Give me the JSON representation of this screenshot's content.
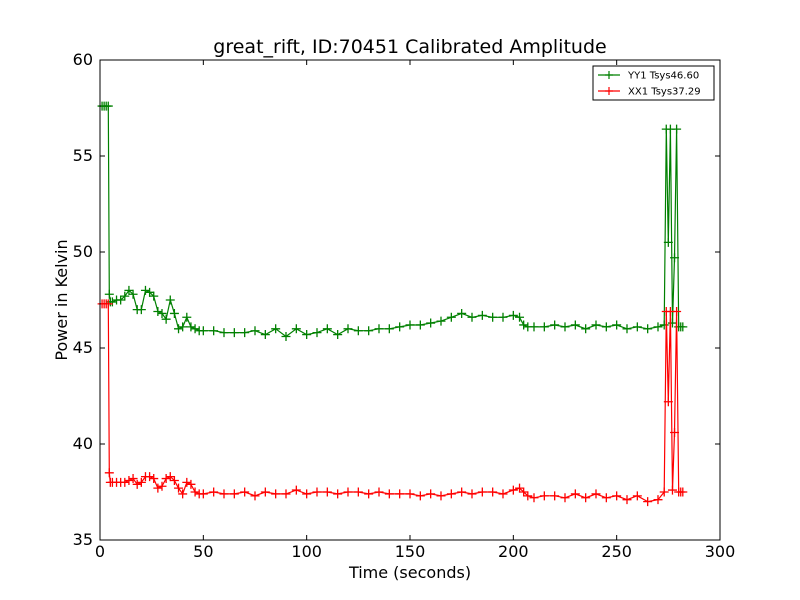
{
  "chart_data": {
    "type": "line",
    "title": "great_rift, ID:70451 Calibrated Amplitude",
    "xlabel": "Time (seconds)",
    "ylabel": "Power in Kelvin",
    "xlim": [
      0,
      300
    ],
    "ylim": [
      35,
      60
    ],
    "xticks": [
      "0",
      "50",
      "100",
      "150",
      "200",
      "250",
      "300"
    ],
    "yticks": [
      "35",
      "40",
      "45",
      "50",
      "55",
      "60"
    ],
    "grid": false,
    "legend_position": "top-right",
    "marker": "+",
    "series": [
      {
        "name": "YY1 Tsys46.60",
        "color": "#008000",
        "x": [
          1,
          2,
          3,
          4,
          4.5,
          5,
          6,
          8,
          10,
          12,
          14,
          16,
          18,
          20,
          22,
          24,
          26,
          28,
          30,
          32,
          34,
          36,
          38,
          40,
          42,
          44,
          46,
          48,
          50,
          55,
          60,
          65,
          70,
          75,
          80,
          85,
          90,
          95,
          100,
          105,
          110,
          115,
          120,
          125,
          130,
          135,
          140,
          145,
          150,
          155,
          160,
          165,
          170,
          175,
          180,
          185,
          190,
          195,
          200,
          203,
          205,
          207,
          210,
          215,
          220,
          225,
          230,
          235,
          240,
          245,
          250,
          255,
          260,
          265,
          270,
          273,
          274,
          275,
          276,
          277,
          278,
          279,
          280,
          281,
          282
        ],
        "y": [
          57.6,
          57.6,
          57.6,
          57.6,
          47.8,
          47.4,
          47.4,
          47.5,
          47.5,
          47.7,
          48.0,
          47.8,
          47.0,
          47.0,
          48.0,
          47.9,
          47.7,
          46.9,
          46.8,
          46.5,
          47.5,
          46.8,
          46.0,
          46.1,
          46.6,
          46.1,
          46.0,
          45.9,
          45.9,
          45.9,
          45.8,
          45.8,
          45.8,
          45.9,
          45.7,
          46.0,
          45.6,
          46.0,
          45.7,
          45.8,
          46.0,
          45.7,
          46.0,
          45.9,
          45.9,
          46.0,
          46.0,
          46.1,
          46.2,
          46.2,
          46.3,
          46.4,
          46.6,
          46.8,
          46.6,
          46.7,
          46.6,
          46.6,
          46.7,
          46.6,
          46.2,
          46.1,
          46.1,
          46.1,
          46.2,
          46.1,
          46.2,
          46.0,
          46.2,
          46.1,
          46.2,
          46.0,
          46.1,
          46.0,
          46.1,
          46.2,
          56.4,
          50.5,
          56.4,
          46.3,
          49.7,
          56.4,
          46.1,
          46.1,
          46.1
        ]
      },
      {
        "name": "XX1 Tsys37.29",
        "color": "#ff0000",
        "x": [
          1,
          2,
          3,
          4,
          4.5,
          5,
          6,
          8,
          10,
          12,
          14,
          16,
          18,
          20,
          22,
          24,
          26,
          28,
          30,
          32,
          34,
          36,
          38,
          40,
          42,
          44,
          46,
          48,
          50,
          55,
          60,
          65,
          70,
          75,
          80,
          85,
          90,
          95,
          100,
          105,
          110,
          115,
          120,
          125,
          130,
          135,
          140,
          145,
          150,
          155,
          160,
          165,
          170,
          175,
          180,
          185,
          190,
          195,
          200,
          203,
          205,
          207,
          210,
          215,
          220,
          225,
          230,
          235,
          240,
          245,
          250,
          255,
          260,
          265,
          270,
          273,
          274,
          275,
          276,
          277,
          278,
          279,
          280,
          281,
          282
        ],
        "y": [
          47.3,
          47.3,
          47.3,
          47.3,
          38.5,
          38.0,
          38.0,
          38.0,
          38.0,
          38.0,
          38.1,
          38.2,
          37.9,
          38.0,
          38.3,
          38.3,
          38.2,
          37.7,
          37.8,
          38.2,
          38.3,
          38.1,
          37.7,
          37.4,
          38.0,
          37.9,
          37.5,
          37.4,
          37.4,
          37.5,
          37.4,
          37.4,
          37.5,
          37.3,
          37.5,
          37.4,
          37.4,
          37.6,
          37.4,
          37.5,
          37.5,
          37.4,
          37.5,
          37.5,
          37.4,
          37.5,
          37.4,
          37.4,
          37.4,
          37.3,
          37.4,
          37.3,
          37.4,
          37.5,
          37.4,
          37.5,
          37.5,
          37.4,
          37.6,
          37.7,
          37.5,
          37.3,
          37.2,
          37.3,
          37.3,
          37.2,
          37.4,
          37.2,
          37.4,
          37.2,
          37.3,
          37.1,
          37.3,
          37.0,
          37.1,
          37.5,
          46.9,
          42.2,
          46.9,
          37.6,
          40.6,
          46.9,
          37.5,
          37.5,
          37.5
        ]
      }
    ]
  }
}
